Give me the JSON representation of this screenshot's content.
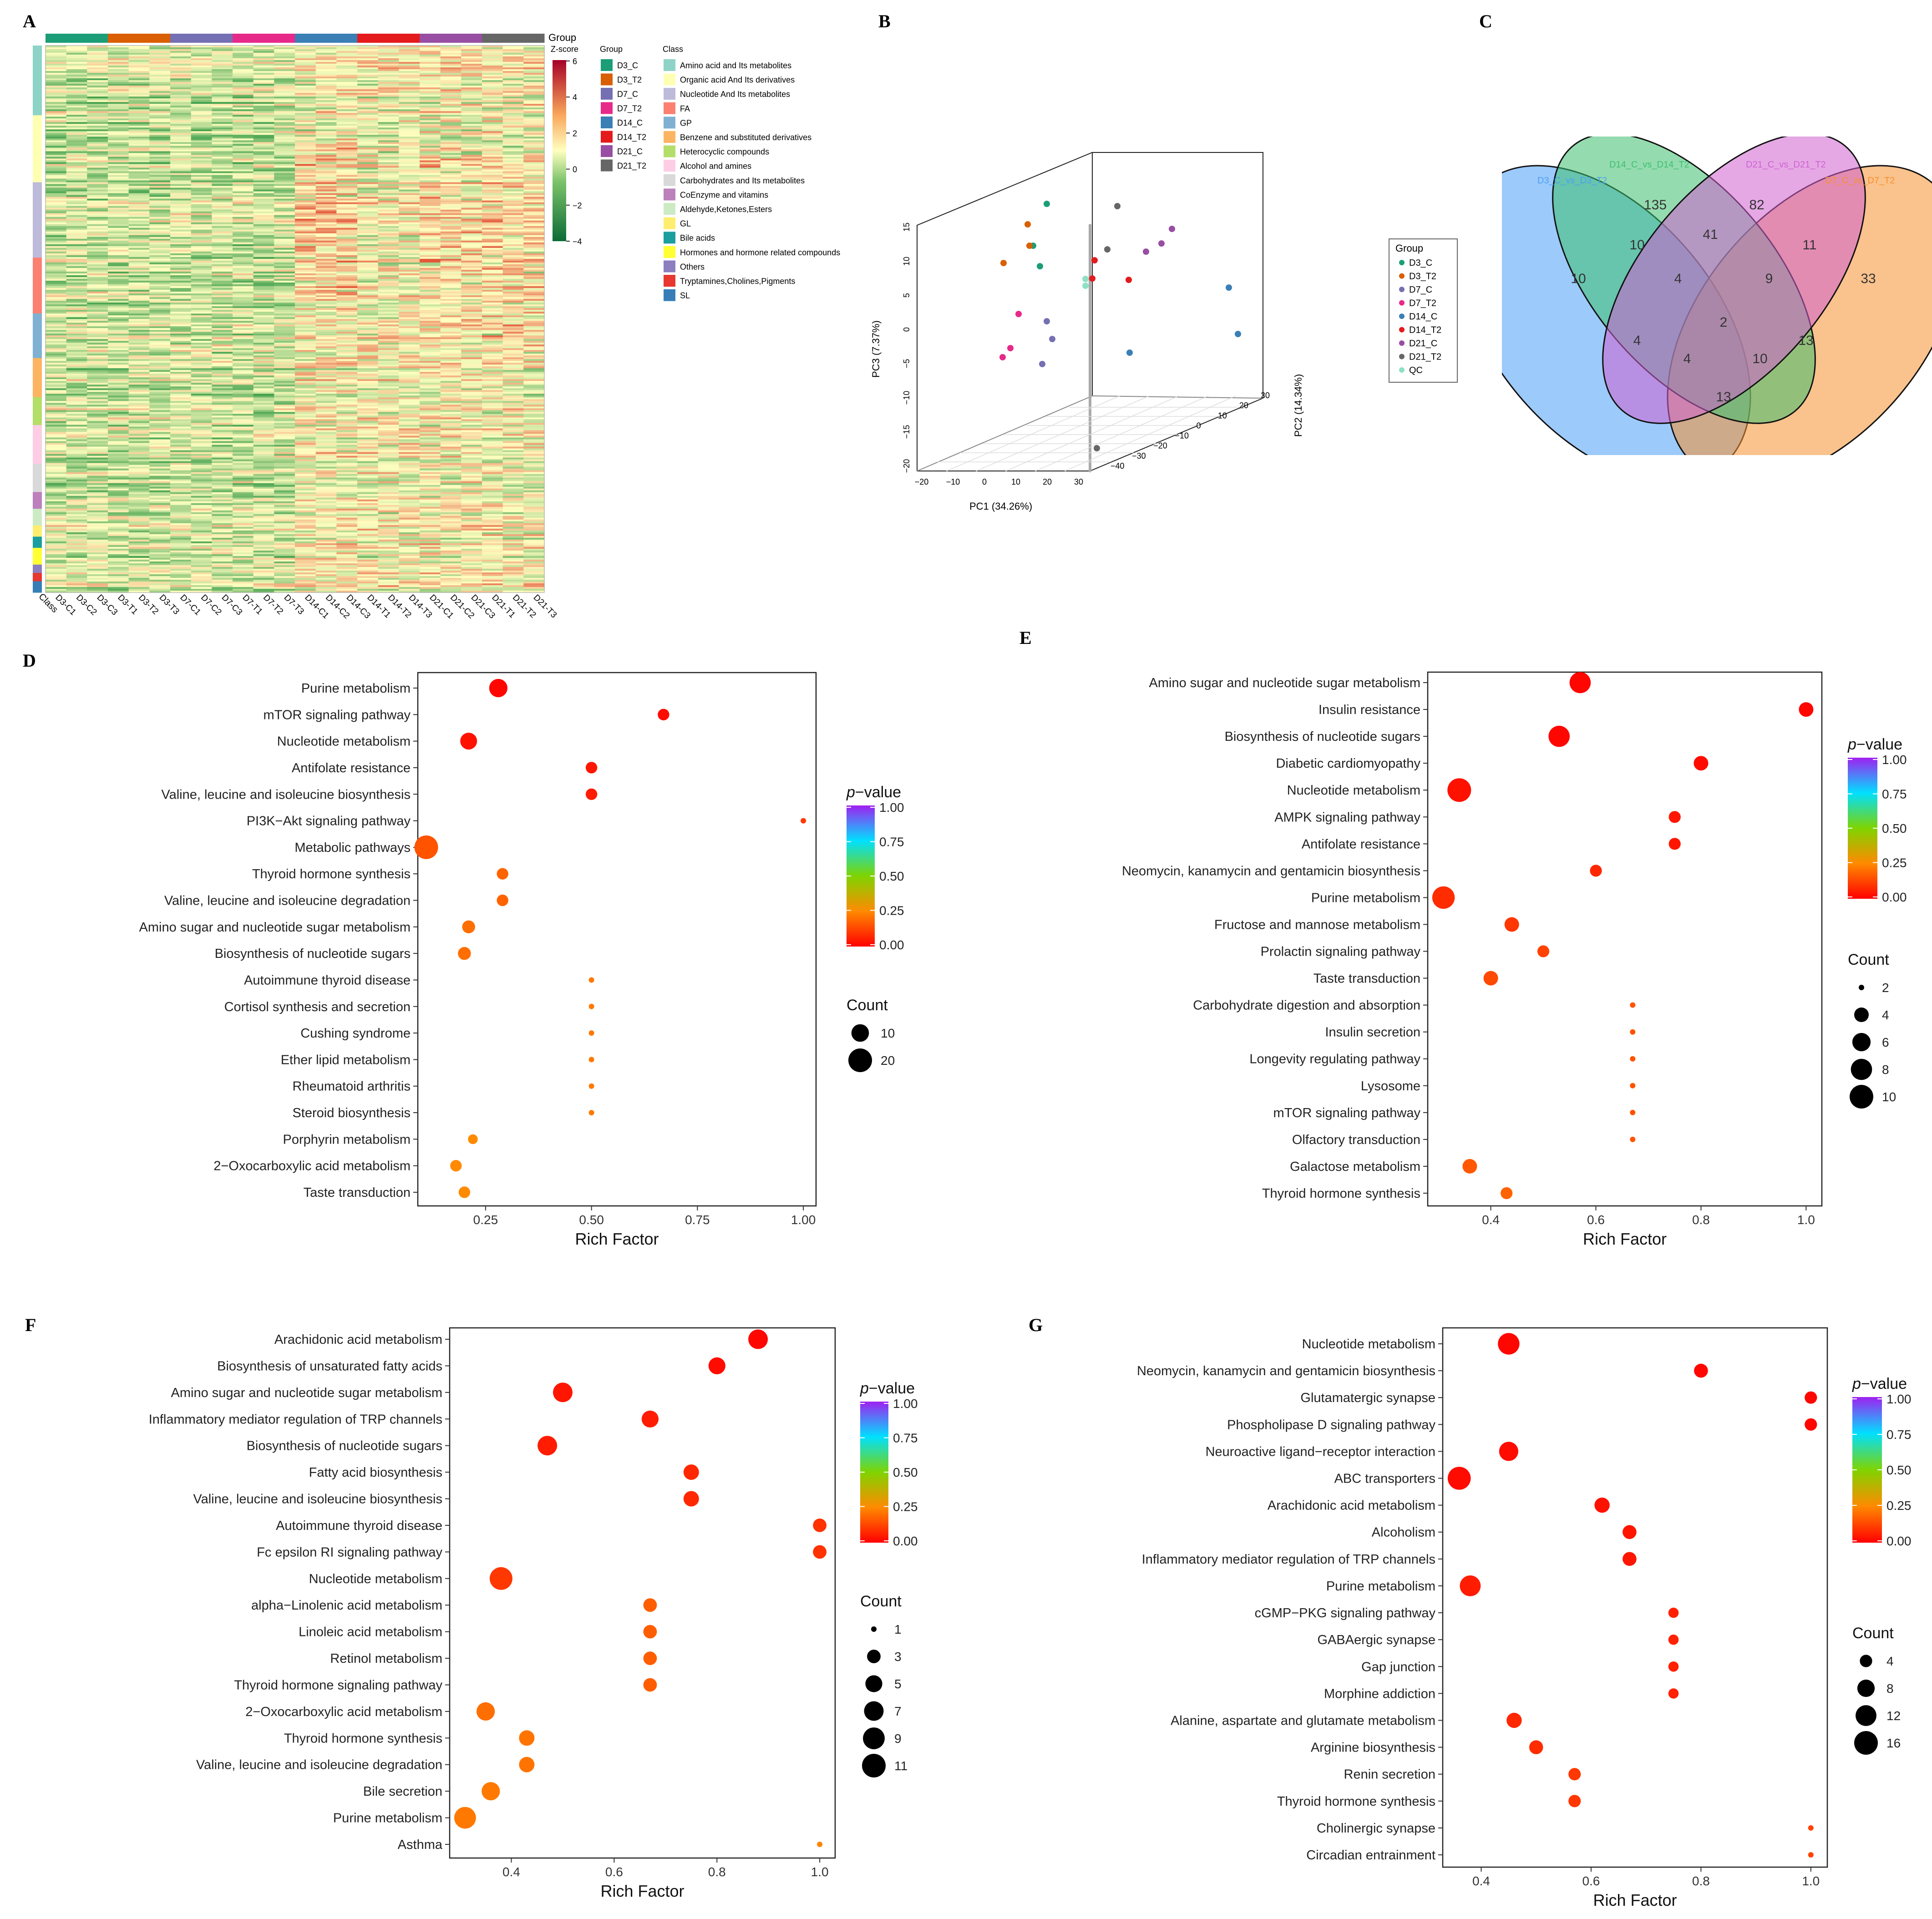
{
  "panel_labels": [
    "A",
    "B",
    "C",
    "D",
    "E",
    "F",
    "G"
  ],
  "colors": {
    "heat_low": "#0b6b35",
    "heat_mid": "#ffffc0",
    "heat_high": "#a50026",
    "dot_low": "#ff0000",
    "dot_high": "#a020f0"
  },
  "heatmap": {
    "zscore_title": "Z-score",
    "zscore_ticks": [
      "6",
      "4",
      "2",
      "0",
      "−2",
      "−4"
    ],
    "group_legend_title": "Group",
    "class_legend_title": "Class",
    "class_column_label": "Class",
    "groups": [
      {
        "name": "D3_C",
        "color": "#1b9e77"
      },
      {
        "name": "D3_T2",
        "color": "#d95f02"
      },
      {
        "name": "D7_C",
        "color": "#7570b3"
      },
      {
        "name": "D7_T2",
        "color": "#e7298a"
      },
      {
        "name": "D14_C",
        "color": "#3a7fb5"
      },
      {
        "name": "D14_T2",
        "color": "#e41a1c"
      },
      {
        "name": "D21_C",
        "color": "#984ea3"
      },
      {
        "name": "D21_T2",
        "color": "#666666"
      }
    ],
    "classes": [
      {
        "name": "Amino acid and Its metabolites",
        "color": "#8dd3c7"
      },
      {
        "name": "Organic acid And Its derivatives",
        "color": "#ffffb3"
      },
      {
        "name": "Nucleotide And Its metabolites",
        "color": "#bebada"
      },
      {
        "name": "FA",
        "color": "#fb8072"
      },
      {
        "name": "GP",
        "color": "#80b1d3"
      },
      {
        "name": "Benzene and substituted derivatives",
        "color": "#fdb462"
      },
      {
        "name": "Heterocyclic compounds",
        "color": "#b3de69"
      },
      {
        "name": "Alcohol and amines",
        "color": "#fccde5"
      },
      {
        "name": "Carbohydrates and Its metabolites",
        "color": "#d9d9d9"
      },
      {
        "name": "CoEnzyme and vitamins",
        "color": "#bc80bd"
      },
      {
        "name": "Aldehyde,Ketones,Esters",
        "color": "#ccebc5"
      },
      {
        "name": "GL",
        "color": "#ffed6f"
      },
      {
        "name": "Bile acids",
        "color": "#1b9e9e"
      },
      {
        "name": "Hormones and hormone related compounds",
        "color": "#ffff33"
      },
      {
        "name": "Others",
        "color": "#8c7fbf"
      },
      {
        "name": "Tryptamines,Cholines,Pigments",
        "color": "#e7372e"
      },
      {
        "name": "SL",
        "color": "#377eb8"
      }
    ],
    "samples": [
      "D3-C1",
      "D3-C2",
      "D3-C3",
      "D3-T1",
      "D3-T2",
      "D3-T3",
      "D7-C1",
      "D7-C2",
      "D7-C3",
      "D7-T1",
      "D7-T2",
      "D7-T3",
      "D14-C1",
      "D14-C2",
      "D14-C3",
      "D14-T1",
      "D14-T2",
      "D14-T3",
      "D21-C1",
      "D21-C2",
      "D21-C3",
      "D21-T1",
      "D21-T2",
      "D21-T3"
    ]
  },
  "pca": {
    "xlabel": "PC1 (34.26%)",
    "ylabel": "PC2 (14.34%)",
    "zlabel": "PC3 (7.37%)",
    "xticks": [
      "−20",
      "−10",
      "0",
      "10",
      "20",
      "30"
    ],
    "yticks": [
      "−40",
      "−30",
      "−20",
      "−10",
      "0",
      "10",
      "20",
      "30"
    ],
    "zticks": [
      "15",
      "10",
      "5",
      "0",
      "−5",
      "−10",
      "−15",
      "−20"
    ],
    "legend_title": "Group",
    "legend": [
      {
        "name": "D3_C",
        "color": "#1b9e77"
      },
      {
        "name": "D3_T2",
        "color": "#d95f02"
      },
      {
        "name": "D7_C",
        "color": "#7570b3"
      },
      {
        "name": "D7_T2",
        "color": "#e7298a"
      },
      {
        "name": "D14_C",
        "color": "#3a7fb5"
      },
      {
        "name": "D14_T2",
        "color": "#e41a1c"
      },
      {
        "name": "D21_C",
        "color": "#984ea3"
      },
      {
        "name": "D21_T2",
        "color": "#666666"
      },
      {
        "name": "QC",
        "color": "#8ee0c6"
      }
    ]
  },
  "venn": {
    "sets": [
      {
        "name": "D3_C_vs_D3_T2",
        "color": "#4a9ff5"
      },
      {
        "name": "D14_C_vs_D14_T2",
        "color": "#3dbf6e"
      },
      {
        "name": "D21_C_vs_D21_T2",
        "color": "#d060d0"
      },
      {
        "name": "D7_C_vs_D7_T2",
        "color": "#f5902e"
      }
    ],
    "regions": [
      "135",
      "82",
      "10",
      "41",
      "11",
      "10",
      "4",
      "9",
      "33",
      "2",
      "4",
      "13",
      "4",
      "10",
      "13"
    ]
  },
  "chart_data": [
    {
      "panel": "D",
      "type": "scatter",
      "xlabel": "Rich Factor",
      "xlim": [
        0.09,
        1.03
      ],
      "xticks": [
        "0.25",
        "0.50",
        "0.75",
        "1.00"
      ],
      "xtick_values": [
        0.25,
        0.5,
        0.75,
        1.0
      ],
      "pvalue_title": "p−value",
      "pvalue_ticks": [
        "1.00",
        "0.75",
        "0.50",
        "0.25",
        "0.00"
      ],
      "count_title": "Count",
      "count_legend": [
        {
          "label": "10",
          "value": 10
        },
        {
          "label": "20",
          "value": 20
        }
      ],
      "size_scale": {
        "min": 2,
        "max": 20
      },
      "points": [
        {
          "term": "Purine metabolism",
          "rich": 0.28,
          "count": 11,
          "p": 0.01
        },
        {
          "term": "mTOR signaling pathway",
          "rich": 0.67,
          "count": 4,
          "p": 0.02
        },
        {
          "term": "Nucleotide metabolism",
          "rich": 0.21,
          "count": 9,
          "p": 0.03
        },
        {
          "term": "Antifolate resistance",
          "rich": 0.5,
          "count": 4,
          "p": 0.04
        },
        {
          "term": "Valine, leucine and isoleucine biosynthesis",
          "rich": 0.5,
          "count": 4,
          "p": 0.05
        },
        {
          "term": "PI3K−Akt signaling pathway",
          "rich": 1.0,
          "count": 2,
          "p": 0.1
        },
        {
          "term": "Metabolic pathways",
          "rich": 0.11,
          "count": 22,
          "p": 0.15
        },
        {
          "term": "Thyroid hormone synthesis",
          "rich": 0.29,
          "count": 4,
          "p": 0.18
        },
        {
          "term": "Valine, leucine and isoleucine degradation",
          "rich": 0.29,
          "count": 4,
          "p": 0.18
        },
        {
          "term": "Amino sugar and nucleotide sugar metabolism",
          "rich": 0.21,
          "count": 5,
          "p": 0.2
        },
        {
          "term": "Biosynthesis of nucleotide sugars",
          "rich": 0.2,
          "count": 5,
          "p": 0.2
        },
        {
          "term": "Autoimmune thyroid disease",
          "rich": 0.5,
          "count": 2,
          "p": 0.22
        },
        {
          "term": "Cortisol synthesis and secretion",
          "rich": 0.5,
          "count": 2,
          "p": 0.22
        },
        {
          "term": "Cushing syndrome",
          "rich": 0.5,
          "count": 2,
          "p": 0.22
        },
        {
          "term": "Ether lipid metabolism",
          "rich": 0.5,
          "count": 2,
          "p": 0.22
        },
        {
          "term": "Rheumatoid arthritis",
          "rich": 0.5,
          "count": 2,
          "p": 0.22
        },
        {
          "term": "Steroid biosynthesis",
          "rich": 0.5,
          "count": 2,
          "p": 0.22
        },
        {
          "term": "Porphyrin metabolism",
          "rich": 0.22,
          "count": 3,
          "p": 0.25
        },
        {
          "term": "2−Oxocarboxylic acid metabolism",
          "rich": 0.18,
          "count": 4,
          "p": 0.25
        },
        {
          "term": "Taste transduction",
          "rich": 0.2,
          "count": 4,
          "p": 0.25
        }
      ]
    },
    {
      "panel": "E",
      "type": "scatter",
      "xlabel": "Rich Factor",
      "xlim": [
        0.28,
        1.03
      ],
      "xticks": [
        "0.4",
        "0.6",
        "0.8",
        "1.0"
      ],
      "xtick_values": [
        0.4,
        0.6,
        0.8,
        1.0
      ],
      "pvalue_title": "p−value",
      "pvalue_ticks": [
        "1.00",
        "0.75",
        "0.50",
        "0.25",
        "0.00"
      ],
      "count_title": "Count",
      "count_legend": [
        {
          "label": "2",
          "value": 2
        },
        {
          "label": "4",
          "value": 4
        },
        {
          "label": "6",
          "value": 6
        },
        {
          "label": "8",
          "value": 8
        },
        {
          "label": "10",
          "value": 10
        }
      ],
      "size_scale": {
        "min": 2,
        "max": 10
      },
      "points": [
        {
          "term": "Amino sugar and nucleotide sugar metabolism",
          "rich": 0.57,
          "count": 8,
          "p": 0.01
        },
        {
          "term": "Insulin resistance",
          "rich": 1.0,
          "count": 4,
          "p": 0.01
        },
        {
          "term": "Biosynthesis of nucleotide sugars",
          "rich": 0.53,
          "count": 8,
          "p": 0.01
        },
        {
          "term": "Diabetic cardiomyopathy",
          "rich": 0.8,
          "count": 4,
          "p": 0.02
        },
        {
          "term": "Nucleotide metabolism",
          "rich": 0.34,
          "count": 11,
          "p": 0.03
        },
        {
          "term": "AMPK signaling pathway",
          "rich": 0.75,
          "count": 3,
          "p": 0.04
        },
        {
          "term": "Antifolate resistance",
          "rich": 0.75,
          "count": 3,
          "p": 0.04
        },
        {
          "term": "Neomycin, kanamycin and gentamicin biosynthesis",
          "rich": 0.6,
          "count": 3,
          "p": 0.07
        },
        {
          "term": "Purine metabolism",
          "rich": 0.31,
          "count": 9,
          "p": 0.08
        },
        {
          "term": "Fructose and mannose metabolism",
          "rich": 0.44,
          "count": 4,
          "p": 0.1
        },
        {
          "term": "Prolactin signaling pathway",
          "rich": 0.5,
          "count": 3,
          "p": 0.12
        },
        {
          "term": "Taste transduction",
          "rich": 0.4,
          "count": 4,
          "p": 0.13
        },
        {
          "term": "Carbohydrate digestion and absorption",
          "rich": 0.67,
          "count": 1,
          "p": 0.15
        },
        {
          "term": "Insulin secretion",
          "rich": 0.67,
          "count": 1,
          "p": 0.15
        },
        {
          "term": "Longevity regulating pathway",
          "rich": 0.67,
          "count": 1,
          "p": 0.15
        },
        {
          "term": "Lysosome",
          "rich": 0.67,
          "count": 1,
          "p": 0.15
        },
        {
          "term": "mTOR signaling pathway",
          "rich": 0.67,
          "count": 1,
          "p": 0.15
        },
        {
          "term": "Olfactory transduction",
          "rich": 0.67,
          "count": 1,
          "p": 0.15
        },
        {
          "term": "Galactose metabolism",
          "rich": 0.36,
          "count": 4,
          "p": 0.16
        },
        {
          "term": "Thyroid hormone synthesis",
          "rich": 0.43,
          "count": 3,
          "p": 0.18
        }
      ]
    },
    {
      "panel": "F",
      "type": "scatter",
      "xlabel": "Rich Factor",
      "xlim": [
        0.28,
        1.03
      ],
      "xticks": [
        "0.4",
        "0.6",
        "0.8",
        "1.0"
      ],
      "xtick_values": [
        0.4,
        0.6,
        0.8,
        1.0
      ],
      "pvalue_title": "p−value",
      "pvalue_ticks": [
        "1.00",
        "0.75",
        "0.50",
        "0.25",
        "0.00"
      ],
      "count_title": "Count",
      "count_legend": [
        {
          "label": "1",
          "value": 1
        },
        {
          "label": "3",
          "value": 3
        },
        {
          "label": "5",
          "value": 5
        },
        {
          "label": "7",
          "value": 7
        },
        {
          "label": "9",
          "value": 9
        },
        {
          "label": "11",
          "value": 11
        }
      ],
      "size_scale": {
        "min": 1,
        "max": 11
      },
      "points": [
        {
          "term": "Arachidonic acid metabolism",
          "rich": 0.88,
          "count": 7,
          "p": 0.01
        },
        {
          "term": "Biosynthesis of unsaturated fatty acids",
          "rich": 0.8,
          "count": 5,
          "p": 0.02
        },
        {
          "term": "Amino sugar and nucleotide sugar metabolism",
          "rich": 0.5,
          "count": 7,
          "p": 0.04
        },
        {
          "term": "Inflammatory mediator regulation of TRP channels",
          "rich": 0.67,
          "count": 5,
          "p": 0.05
        },
        {
          "term": "Biosynthesis of nucleotide sugars",
          "rich": 0.47,
          "count": 7,
          "p": 0.05
        },
        {
          "term": "Fatty acid biosynthesis",
          "rich": 0.75,
          "count": 4,
          "p": 0.07
        },
        {
          "term": "Valine, leucine and isoleucine biosynthesis",
          "rich": 0.75,
          "count": 4,
          "p": 0.07
        },
        {
          "term": "Autoimmune thyroid disease",
          "rich": 1.0,
          "count": 3,
          "p": 0.09
        },
        {
          "term": "Fc epsilon RI signaling pathway",
          "rich": 1.0,
          "count": 3,
          "p": 0.09
        },
        {
          "term": "Nucleotide metabolism",
          "rich": 0.38,
          "count": 10,
          "p": 0.1
        },
        {
          "term": "alpha−Linolenic acid metabolism",
          "rich": 0.67,
          "count": 3,
          "p": 0.17
        },
        {
          "term": "Linoleic acid metabolism",
          "rich": 0.67,
          "count": 3,
          "p": 0.17
        },
        {
          "term": "Retinol metabolism",
          "rich": 0.67,
          "count": 3,
          "p": 0.17
        },
        {
          "term": "Thyroid hormone signaling pathway",
          "rich": 0.67,
          "count": 3,
          "p": 0.17
        },
        {
          "term": "2−Oxocarboxylic acid metabolism",
          "rich": 0.35,
          "count": 6,
          "p": 0.2
        },
        {
          "term": "Thyroid hormone synthesis",
          "rich": 0.43,
          "count": 4,
          "p": 0.21
        },
        {
          "term": "Valine, leucine and isoleucine degradation",
          "rich": 0.43,
          "count": 4,
          "p": 0.21
        },
        {
          "term": "Bile secretion",
          "rich": 0.36,
          "count": 6,
          "p": 0.22
        },
        {
          "term": "Purine metabolism",
          "rich": 0.31,
          "count": 9,
          "p": 0.22
        },
        {
          "term": "Asthma",
          "rich": 1.0,
          "count": 1,
          "p": 0.24
        }
      ]
    },
    {
      "panel": "G",
      "type": "scatter",
      "xlabel": "Rich Factor",
      "xlim": [
        0.33,
        1.03
      ],
      "xticks": [
        "0.4",
        "0.6",
        "0.8",
        "1.0"
      ],
      "xtick_values": [
        0.4,
        0.6,
        0.8,
        1.0
      ],
      "pvalue_title": "p−value",
      "pvalue_ticks": [
        "1.00",
        "0.75",
        "0.50",
        "0.25",
        "0.00"
      ],
      "count_title": "Count",
      "count_legend": [
        {
          "label": "4",
          "value": 4
        },
        {
          "label": "8",
          "value": 8
        },
        {
          "label": "12",
          "value": 12
        },
        {
          "label": "16",
          "value": 16
        }
      ],
      "size_scale": {
        "min": 2,
        "max": 16
      },
      "points": [
        {
          "term": "Nucleotide metabolism",
          "rich": 0.45,
          "count": 13,
          "p": 0.01
        },
        {
          "term": "Neomycin, kanamycin and gentamicin biosynthesis",
          "rich": 0.8,
          "count": 5,
          "p": 0.01
        },
        {
          "term": "Glutamatergic synapse",
          "rich": 1.0,
          "count": 4,
          "p": 0.01
        },
        {
          "term": "Phospholipase D signaling pathway",
          "rich": 1.0,
          "count": 4,
          "p": 0.01
        },
        {
          "term": "Neuroactive ligand−receptor interaction",
          "rich": 0.45,
          "count": 10,
          "p": 0.02
        },
        {
          "term": "ABC transporters",
          "rich": 0.36,
          "count": 15,
          "p": 0.02
        },
        {
          "term": "Arachidonic acid metabolism",
          "rich": 0.62,
          "count": 6,
          "p": 0.03
        },
        {
          "term": "Alcoholism",
          "rich": 0.67,
          "count": 5,
          "p": 0.04
        },
        {
          "term": "Inflammatory mediator regulation of TRP channels",
          "rich": 0.67,
          "count": 5,
          "p": 0.04
        },
        {
          "term": "Purine metabolism",
          "rich": 0.38,
          "count": 12,
          "p": 0.05
        },
        {
          "term": "cGMP−PKG signaling pathway",
          "rich": 0.75,
          "count": 3,
          "p": 0.06
        },
        {
          "term": "GABAergic synapse",
          "rich": 0.75,
          "count": 3,
          "p": 0.06
        },
        {
          "term": "Gap junction",
          "rich": 0.75,
          "count": 3,
          "p": 0.06
        },
        {
          "term": "Morphine addiction",
          "rich": 0.75,
          "count": 3,
          "p": 0.06
        },
        {
          "term": "Alanine, aspartate and glutamate metabolism",
          "rich": 0.46,
          "count": 6,
          "p": 0.07
        },
        {
          "term": "Arginine biosynthesis",
          "rich": 0.5,
          "count": 5,
          "p": 0.08
        },
        {
          "term": "Renin secretion",
          "rich": 0.57,
          "count": 4,
          "p": 0.1
        },
        {
          "term": "Thyroid hormone synthesis",
          "rich": 0.57,
          "count": 4,
          "p": 0.1
        },
        {
          "term": "Cholinergic synapse",
          "rich": 1.0,
          "count": 2,
          "p": 0.12
        },
        {
          "term": "Circadian entrainment",
          "rich": 1.0,
          "count": 2,
          "p": 0.12
        }
      ]
    }
  ]
}
